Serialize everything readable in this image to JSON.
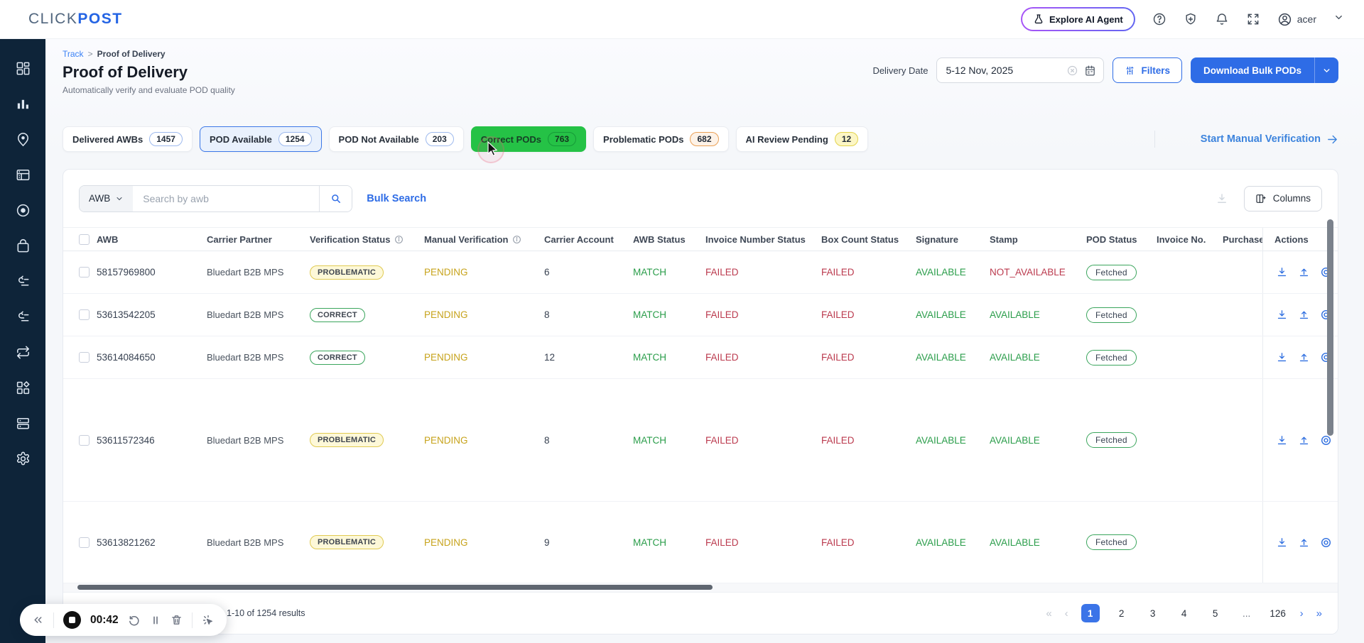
{
  "topbar": {
    "logo_primary": "CLICK",
    "logo_secondary": "POST",
    "explore_ai_label": "Explore AI Agent",
    "username": "acer"
  },
  "breadcrumb": {
    "section": "Track",
    "separator": ">",
    "page": "Proof of Delivery"
  },
  "page_header": {
    "title": "Proof of Delivery",
    "subtitle": "Automatically verify and evaluate POD quality",
    "delivery_date_label": "Delivery Date",
    "delivery_date_value": "5-12 Nov, 2025",
    "filters_label": "Filters",
    "download_bulk_label": "Download Bulk PODs"
  },
  "status_tabs": [
    {
      "label": "Delivered AWBs",
      "count": "1457",
      "variant": "default",
      "badge": "blue"
    },
    {
      "label": "POD Available",
      "count": "1254",
      "variant": "selected",
      "badge": "blue"
    },
    {
      "label": "POD Not Available",
      "count": "203",
      "variant": "default",
      "badge": "blue"
    },
    {
      "label": "Correct PODs",
      "count": "763",
      "variant": "green",
      "badge": "green"
    },
    {
      "label": "Problematic PODs",
      "count": "682",
      "variant": "default",
      "badge": "orange"
    },
    {
      "label": "AI Review Pending",
      "count": "12",
      "variant": "default",
      "badge": "yellow"
    }
  ],
  "start_manual_verification_label": "Start Manual Verification",
  "table_toolbar": {
    "search_category": "AWB",
    "search_placeholder": "Search by awb",
    "bulk_search_label": "Bulk Search",
    "columns_label": "Columns"
  },
  "table": {
    "columns": [
      "AWB",
      "Carrier Partner",
      "Verification Status",
      "Manual Verification",
      "Carrier Account",
      "AWB Status",
      "Invoice Number Status",
      "Box Count Status",
      "Signature",
      "Stamp",
      "POD Status",
      "Invoice No.",
      "Purchase",
      "Actions"
    ],
    "info_columns": [
      "Verification Status",
      "Manual Verification"
    ],
    "rows": [
      {
        "awb": "58157969800",
        "carrier_partner": "Bluedart B2B MPS",
        "verification_status": "PROBLEMATIC",
        "manual_verification": "PENDING",
        "carrier_account": "6",
        "awb_status": "MATCH",
        "invoice_number_status": "FAILED",
        "box_count_status": "FAILED",
        "signature": "AVAILABLE",
        "stamp": "NOT_AVAILABLE",
        "pod_status": "Fetched",
        "invoice_no": "",
        "purchase": ""
      },
      {
        "awb": "53613542205",
        "carrier_partner": "Bluedart B2B MPS",
        "verification_status": "CORRECT",
        "manual_verification": "PENDING",
        "carrier_account": "8",
        "awb_status": "MATCH",
        "invoice_number_status": "FAILED",
        "box_count_status": "FAILED",
        "signature": "AVAILABLE",
        "stamp": "AVAILABLE",
        "pod_status": "Fetched",
        "invoice_no": "",
        "purchase": ""
      },
      {
        "awb": "53614084650",
        "carrier_partner": "Bluedart B2B MPS",
        "verification_status": "CORRECT",
        "manual_verification": "PENDING",
        "carrier_account": "12",
        "awb_status": "MATCH",
        "invoice_number_status": "FAILED",
        "box_count_status": "FAILED",
        "signature": "AVAILABLE",
        "stamp": "AVAILABLE",
        "pod_status": "Fetched",
        "invoice_no": "",
        "purchase": ""
      },
      {
        "awb": "53611572346",
        "carrier_partner": "Bluedart B2B MPS",
        "verification_status": "PROBLEMATIC",
        "manual_verification": "PENDING",
        "carrier_account": "8",
        "awb_status": "MATCH",
        "invoice_number_status": "FAILED",
        "box_count_status": "FAILED",
        "signature": "AVAILABLE",
        "stamp": "AVAILABLE",
        "pod_status": "Fetched",
        "invoice_no": "",
        "purchase": ""
      },
      {
        "awb": "53613821262",
        "carrier_partner": "Bluedart B2B MPS",
        "verification_status": "PROBLEMATIC",
        "manual_verification": "PENDING",
        "carrier_account": "9",
        "awb_status": "MATCH",
        "invoice_number_status": "FAILED",
        "box_count_status": "FAILED",
        "signature": "AVAILABLE",
        "stamp": "AVAILABLE",
        "pod_status": "Fetched",
        "invoice_no": "",
        "purchase": ""
      }
    ]
  },
  "pagination": {
    "results_text": "1-10 of 1254 results",
    "pages": [
      "1",
      "2",
      "3",
      "4",
      "5",
      "...",
      "126"
    ],
    "active_page": "1"
  },
  "recorder": {
    "timer": "00:42"
  },
  "sidebar_icons": [
    "dashboard-icon",
    "analytics-icon",
    "tracking-icon",
    "orders-icon",
    "disc-icon",
    "bag-icon",
    "returns-icon",
    "workflow-icon",
    "sync-icon",
    "integrations-icon",
    "billing-icon",
    "settings-icon"
  ],
  "colors": {
    "primary_blue": "#2e6ce6",
    "tab_green": "#25c246",
    "status_green": "#2a9d4a",
    "status_red": "#bb3a4e",
    "status_yellow": "#c7a31b",
    "sidebar_navy": "#0e2439"
  }
}
